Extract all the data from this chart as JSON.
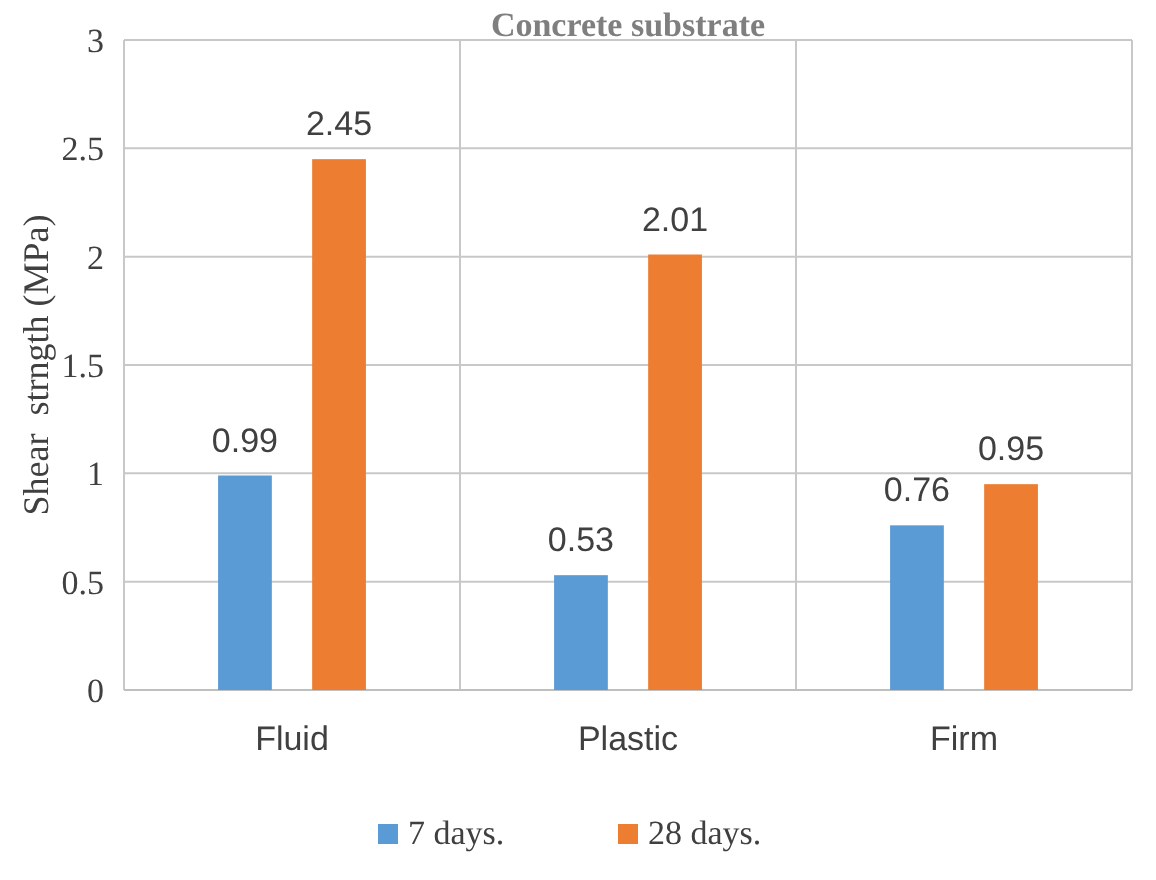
{
  "chart_data": {
    "type": "bar",
    "title": "Concrete substrate",
    "ylabel": "Shear  strngth (MPa)",
    "categories": [
      "Fluid",
      "Plastic",
      "Firm"
    ],
    "series": [
      {
        "name": "7 days.",
        "color": "#5b9bd5",
        "values": [
          0.99,
          0.53,
          0.76
        ]
      },
      {
        "name": "28 days.",
        "color": "#ed7d31",
        "values": [
          2.45,
          2.01,
          0.95
        ]
      }
    ],
    "ylim": [
      0,
      3
    ],
    "yticks": [
      0,
      0.5,
      1,
      1.5,
      2,
      2.5,
      3
    ],
    "grid": true,
    "data_labels": true,
    "legend": "bottom"
  }
}
